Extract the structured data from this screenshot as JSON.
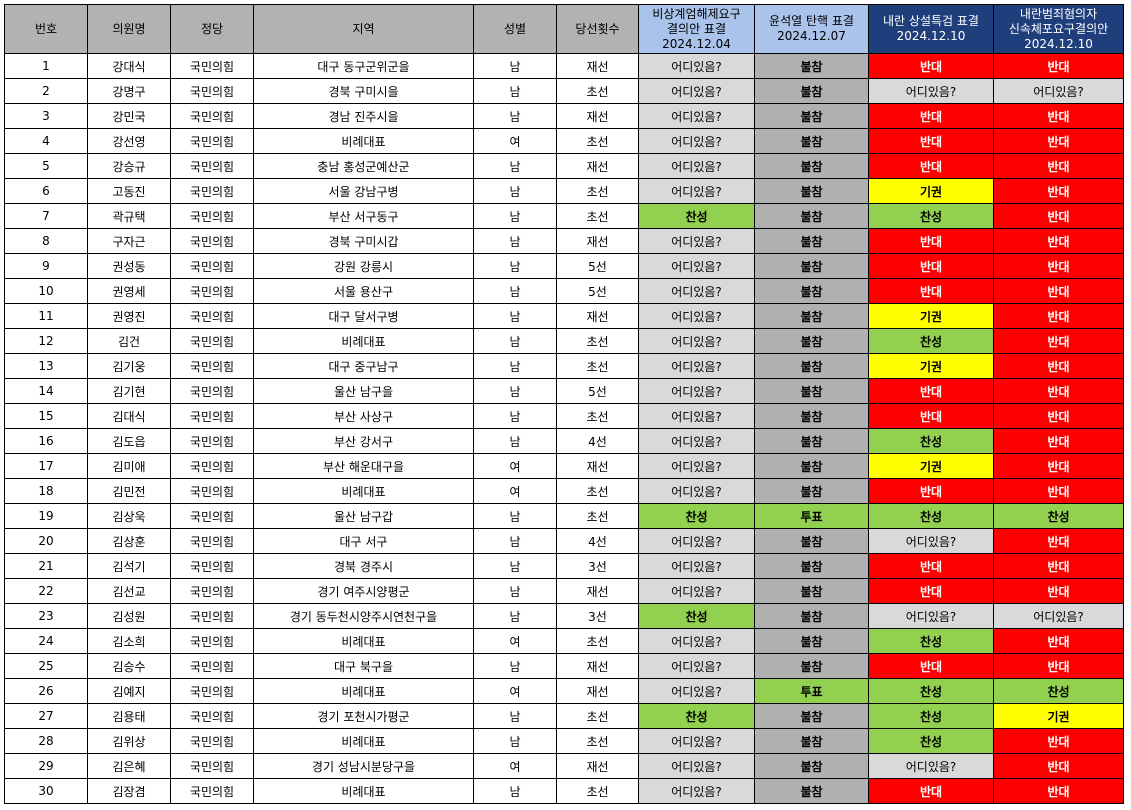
{
  "headers": {
    "no": "번호",
    "name": "의원명",
    "party": "정당",
    "region": "지역",
    "gender": "성별",
    "terms": "당선횟수",
    "vote1": [
      "비상계엄해제요구",
      "결의안 표결",
      "2024.12.04"
    ],
    "vote2": [
      "윤석열 탄핵 표결",
      "2024.12.07"
    ],
    "vote3": [
      "내란 상설특검 표결",
      "2024.12.10"
    ],
    "vote4": [
      "내란범죄혐의자",
      "신속체포요구결의안",
      "2024.12.10"
    ]
  },
  "vote_colors": {
    "어디있음?": "#d9d9d9",
    "불참": "#b0b0b0",
    "반대": "#ff0000",
    "찬성": "#92d050",
    "기권": "#ffff00",
    "투표": "#92d050"
  },
  "rows": [
    {
      "no": "1",
      "name": "강대식",
      "party": "국민의힘",
      "region": "대구 동구군위군을",
      "gender": "남",
      "terms": "재선",
      "v1": "어디있음?",
      "v2": "불참",
      "v3": "반대",
      "v4": "반대"
    },
    {
      "no": "2",
      "name": "강명구",
      "party": "국민의힘",
      "region": "경북 구미시을",
      "gender": "남",
      "terms": "초선",
      "v1": "어디있음?",
      "v2": "불참",
      "v3": "어디있음?",
      "v4": "어디있음?"
    },
    {
      "no": "3",
      "name": "강민국",
      "party": "국민의힘",
      "region": "경남 진주시을",
      "gender": "남",
      "terms": "재선",
      "v1": "어디있음?",
      "v2": "불참",
      "v3": "반대",
      "v4": "반대"
    },
    {
      "no": "4",
      "name": "강선영",
      "party": "국민의힘",
      "region": "비례대표",
      "gender": "여",
      "terms": "초선",
      "v1": "어디있음?",
      "v2": "불참",
      "v3": "반대",
      "v4": "반대"
    },
    {
      "no": "5",
      "name": "강승규",
      "party": "국민의힘",
      "region": "충남 홍성군예산군",
      "gender": "남",
      "terms": "재선",
      "v1": "어디있음?",
      "v2": "불참",
      "v3": "반대",
      "v4": "반대"
    },
    {
      "no": "6",
      "name": "고동진",
      "party": "국민의힘",
      "region": "서울 강남구병",
      "gender": "남",
      "terms": "초선",
      "v1": "어디있음?",
      "v2": "불참",
      "v3": "기권",
      "v4": "반대"
    },
    {
      "no": "7",
      "name": "곽규택",
      "party": "국민의힘",
      "region": "부산 서구동구",
      "gender": "남",
      "terms": "초선",
      "v1": "찬성",
      "v2": "불참",
      "v3": "찬성",
      "v4": "반대"
    },
    {
      "no": "8",
      "name": "구자근",
      "party": "국민의힘",
      "region": "경북 구미시갑",
      "gender": "남",
      "terms": "재선",
      "v1": "어디있음?",
      "v2": "불참",
      "v3": "반대",
      "v4": "반대"
    },
    {
      "no": "9",
      "name": "권성동",
      "party": "국민의힘",
      "region": "강원 강릉시",
      "gender": "남",
      "terms": "5선",
      "v1": "어디있음?",
      "v2": "불참",
      "v3": "반대",
      "v4": "반대"
    },
    {
      "no": "10",
      "name": "권영세",
      "party": "국민의힘",
      "region": "서울 용산구",
      "gender": "남",
      "terms": "5선",
      "v1": "어디있음?",
      "v2": "불참",
      "v3": "반대",
      "v4": "반대"
    },
    {
      "no": "11",
      "name": "권영진",
      "party": "국민의힘",
      "region": "대구 달서구병",
      "gender": "남",
      "terms": "재선",
      "v1": "어디있음?",
      "v2": "불참",
      "v3": "기권",
      "v4": "반대"
    },
    {
      "no": "12",
      "name": "김건",
      "party": "국민의힘",
      "region": "비례대표",
      "gender": "남",
      "terms": "초선",
      "v1": "어디있음?",
      "v2": "불참",
      "v3": "찬성",
      "v4": "반대"
    },
    {
      "no": "13",
      "name": "김기웅",
      "party": "국민의힘",
      "region": "대구 중구남구",
      "gender": "남",
      "terms": "초선",
      "v1": "어디있음?",
      "v2": "불참",
      "v3": "기권",
      "v4": "반대"
    },
    {
      "no": "14",
      "name": "김기현",
      "party": "국민의힘",
      "region": "울산 남구을",
      "gender": "남",
      "terms": "5선",
      "v1": "어디있음?",
      "v2": "불참",
      "v3": "반대",
      "v4": "반대"
    },
    {
      "no": "15",
      "name": "김대식",
      "party": "국민의힘",
      "region": "부산 사상구",
      "gender": "남",
      "terms": "초선",
      "v1": "어디있음?",
      "v2": "불참",
      "v3": "반대",
      "v4": "반대"
    },
    {
      "no": "16",
      "name": "김도읍",
      "party": "국민의힘",
      "region": "부산 강서구",
      "gender": "남",
      "terms": "4선",
      "v1": "어디있음?",
      "v2": "불참",
      "v3": "찬성",
      "v4": "반대"
    },
    {
      "no": "17",
      "name": "김미애",
      "party": "국민의힘",
      "region": "부산 해운대구을",
      "gender": "여",
      "terms": "재선",
      "v1": "어디있음?",
      "v2": "불참",
      "v3": "기권",
      "v4": "반대"
    },
    {
      "no": "18",
      "name": "김민전",
      "party": "국민의힘",
      "region": "비례대표",
      "gender": "여",
      "terms": "초선",
      "v1": "어디있음?",
      "v2": "불참",
      "v3": "반대",
      "v4": "반대"
    },
    {
      "no": "19",
      "name": "김상욱",
      "party": "국민의힘",
      "region": "울산 남구갑",
      "gender": "남",
      "terms": "초선",
      "v1": "찬성",
      "v2": "투표",
      "v3": "찬성",
      "v4": "찬성"
    },
    {
      "no": "20",
      "name": "김상훈",
      "party": "국민의힘",
      "region": "대구 서구",
      "gender": "남",
      "terms": "4선",
      "v1": "어디있음?",
      "v2": "불참",
      "v3": "어디있음?",
      "v4": "반대"
    },
    {
      "no": "21",
      "name": "김석기",
      "party": "국민의힘",
      "region": "경북 경주시",
      "gender": "남",
      "terms": "3선",
      "v1": "어디있음?",
      "v2": "불참",
      "v3": "반대",
      "v4": "반대"
    },
    {
      "no": "22",
      "name": "김선교",
      "party": "국민의힘",
      "region": "경기 여주시양평군",
      "gender": "남",
      "terms": "재선",
      "v1": "어디있음?",
      "v2": "불참",
      "v3": "반대",
      "v4": "반대"
    },
    {
      "no": "23",
      "name": "김성원",
      "party": "국민의힘",
      "region": "경기 동두천시양주시연천구을",
      "gender": "남",
      "terms": "3선",
      "v1": "찬성",
      "v2": "불참",
      "v3": "어디있음?",
      "v4": "어디있음?"
    },
    {
      "no": "24",
      "name": "김소희",
      "party": "국민의힘",
      "region": "비례대표",
      "gender": "여",
      "terms": "초선",
      "v1": "어디있음?",
      "v2": "불참",
      "v3": "찬성",
      "v4": "반대"
    },
    {
      "no": "25",
      "name": "김승수",
      "party": "국민의힘",
      "region": "대구 북구을",
      "gender": "남",
      "terms": "재선",
      "v1": "어디있음?",
      "v2": "불참",
      "v3": "반대",
      "v4": "반대"
    },
    {
      "no": "26",
      "name": "김예지",
      "party": "국민의힘",
      "region": "비례대표",
      "gender": "여",
      "terms": "재선",
      "v1": "어디있음?",
      "v2": "투표",
      "v3": "찬성",
      "v4": "찬성"
    },
    {
      "no": "27",
      "name": "김용태",
      "party": "국민의힘",
      "region": "경기 포천시가평군",
      "gender": "남",
      "terms": "초선",
      "v1": "찬성",
      "v2": "불참",
      "v3": "찬성",
      "v4": "기권"
    },
    {
      "no": "28",
      "name": "김위상",
      "party": "국민의힘",
      "region": "비례대표",
      "gender": "남",
      "terms": "초선",
      "v1": "어디있음?",
      "v2": "불참",
      "v3": "찬성",
      "v4": "반대"
    },
    {
      "no": "29",
      "name": "김은혜",
      "party": "국민의힘",
      "region": "경기 성남시분당구을",
      "gender": "여",
      "terms": "재선",
      "v1": "어디있음?",
      "v2": "불참",
      "v3": "어디있음?",
      "v4": "반대"
    },
    {
      "no": "30",
      "name": "김장겸",
      "party": "국민의힘",
      "region": "비례대표",
      "gender": "남",
      "terms": "초선",
      "v1": "어디있음?",
      "v2": "불참",
      "v3": "반대",
      "v4": "반대"
    }
  ]
}
